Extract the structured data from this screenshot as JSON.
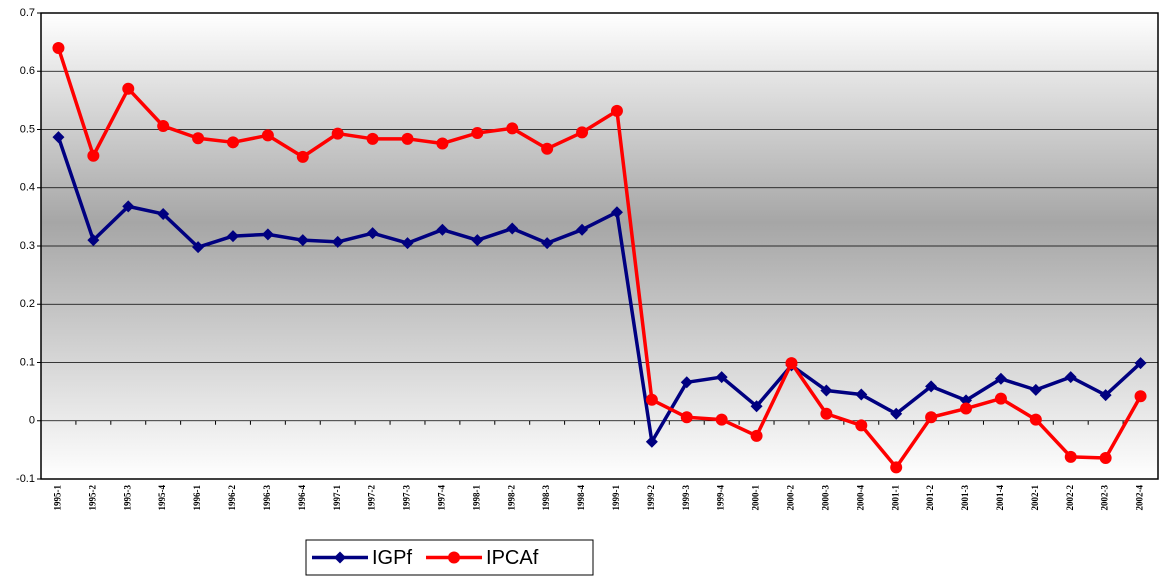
{
  "chart_data": {
    "type": "line",
    "categories": [
      "1995-1",
      "1995-2",
      "1995-3",
      "1995-4",
      "1996-1",
      "1996-2",
      "1996-3",
      "1996-4",
      "1997-1",
      "1997-2",
      "1997-3",
      "1997-4",
      "1998-1",
      "1998-2",
      "1998-3",
      "1998-4",
      "1999-1",
      "1999-2",
      "1999-3",
      "1999-4",
      "2000-1",
      "2000-2",
      "2000-3",
      "2000-4",
      "2001-1",
      "2001-2",
      "2001-3",
      "2001-4",
      "2002-1",
      "2002-2",
      "2002-3",
      "2002-4"
    ],
    "series": [
      {
        "name": "IGPf",
        "color": "#000080",
        "marker": "diamond",
        "values": [
          0.487,
          0.31,
          0.368,
          0.355,
          0.298,
          0.317,
          0.32,
          0.31,
          0.307,
          0.322,
          0.305,
          0.328,
          0.31,
          0.33,
          0.305,
          0.328,
          0.358,
          -0.036,
          0.066,
          0.075,
          0.025,
          0.095,
          0.052,
          0.045,
          0.012,
          0.059,
          0.035,
          0.072,
          0.053,
          0.075,
          0.044,
          0.099
        ]
      },
      {
        "name": "IPCAf",
        "color": "#ff0000",
        "marker": "circle",
        "values": [
          0.64,
          0.455,
          0.57,
          0.506,
          0.485,
          0.478,
          0.49,
          0.453,
          0.493,
          0.484,
          0.484,
          0.476,
          0.494,
          0.502,
          0.467,
          0.495,
          0.532,
          0.036,
          0.006,
          0.002,
          -0.026,
          0.099,
          0.012,
          -0.008,
          -0.08,
          0.006,
          0.021,
          0.038,
          0.002,
          -0.062,
          -0.064,
          0.042
        ]
      }
    ],
    "ylim": [
      -0.1,
      0.7
    ],
    "yticks": [
      -0.1,
      0,
      0.1,
      0.2,
      0.3,
      0.4,
      0.5,
      0.6,
      0.7
    ],
    "grid": true,
    "legend": "bottom"
  }
}
